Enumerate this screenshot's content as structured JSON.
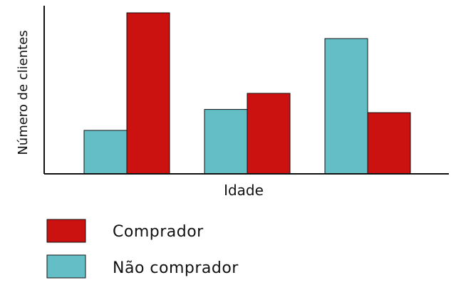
{
  "chart_data": {
    "type": "bar",
    "title": "",
    "xlabel": "Idade",
    "ylabel": "Número de clientes",
    "categories": [
      "",
      "",
      ""
    ],
    "ylim": [
      0,
      100
    ],
    "grid": false,
    "series": [
      {
        "name": "Não comprador",
        "color": "#63bec6",
        "values": [
          27,
          40,
          84
        ]
      },
      {
        "name": "Comprador",
        "color": "#cc1111",
        "values": [
          100,
          50,
          38
        ]
      }
    ],
    "legend": {
      "placement": "bottom-left",
      "entries": [
        {
          "label": "Comprador",
          "color": "#cc1111"
        },
        {
          "label": "Não comprador",
          "color": "#63bec6"
        }
      ]
    }
  }
}
